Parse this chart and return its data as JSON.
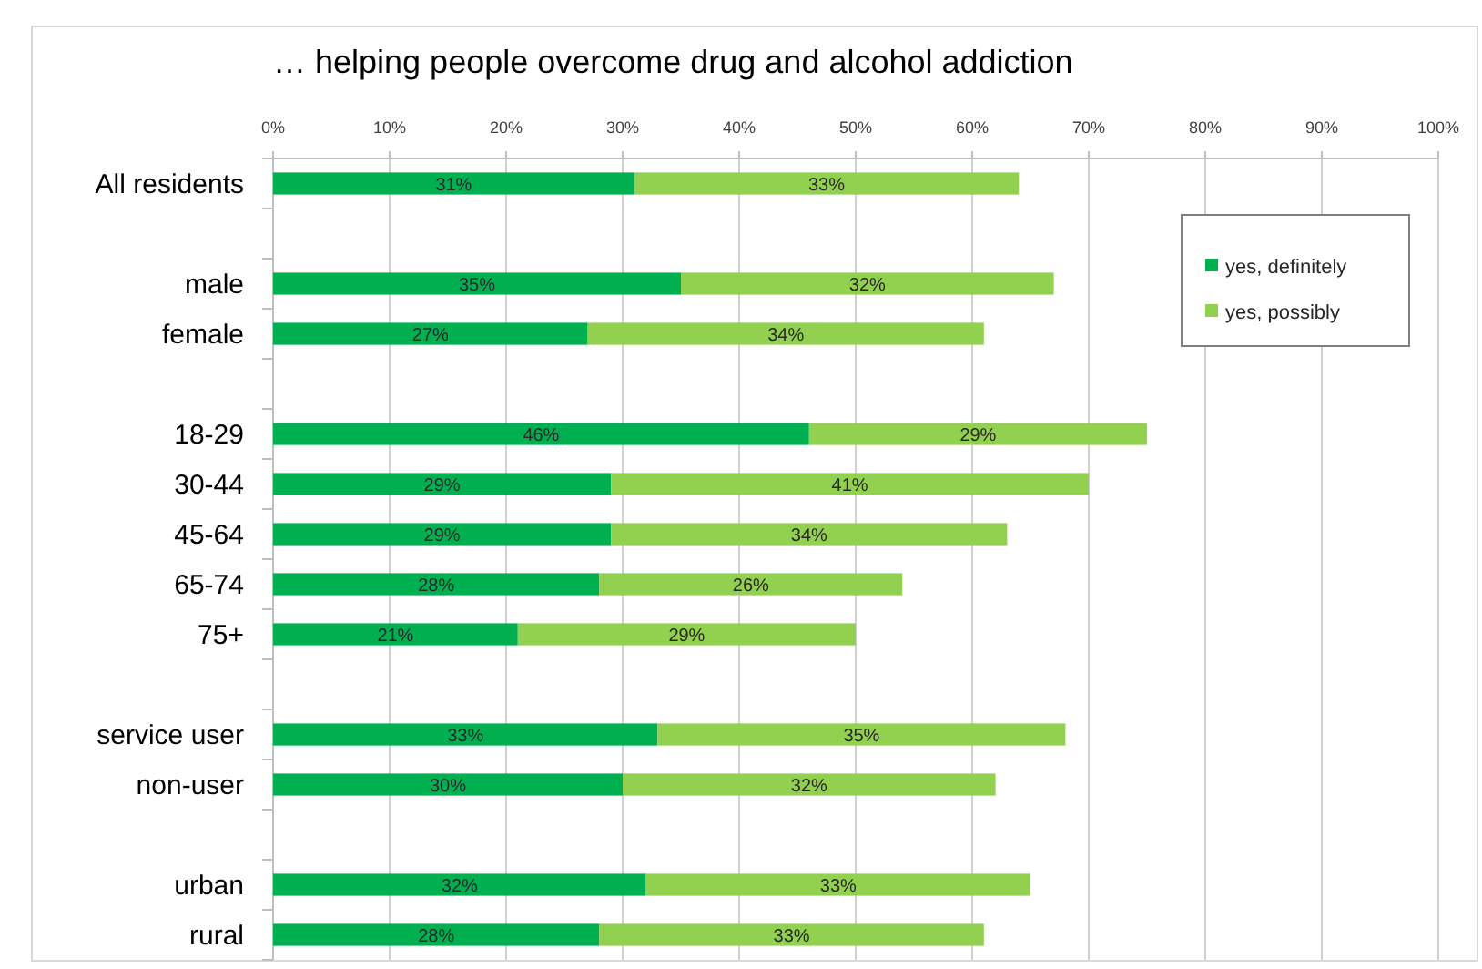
{
  "chart_data": {
    "type": "bar",
    "orientation": "horizontal",
    "stacked": true,
    "title": "… helping people overcome drug and alcohol addiction",
    "categories": [
      "All residents",
      null,
      "male",
      "female",
      null,
      "18-29",
      "30-44",
      "45-64",
      "65-74",
      "75+",
      null,
      "service user",
      "non-user",
      null,
      "urban",
      "rural"
    ],
    "series": [
      {
        "name": "yes, definitely",
        "color": "#00b050",
        "values": [
          31,
          null,
          35,
          27,
          null,
          46,
          29,
          29,
          28,
          21,
          null,
          33,
          30,
          null,
          32,
          28
        ],
        "value_labels": [
          "31%",
          null,
          "35%",
          "27%",
          null,
          "46%",
          "29%",
          "29%",
          "28%",
          "21%",
          null,
          "33%",
          "30%",
          null,
          "32%",
          "28%"
        ]
      },
      {
        "name": "yes, possibly",
        "color": "#92d050",
        "values": [
          33,
          null,
          32,
          34,
          null,
          29,
          41,
          34,
          26,
          29,
          null,
          35,
          32,
          null,
          33,
          33
        ],
        "value_labels": [
          "33%",
          null,
          "32%",
          "34%",
          null,
          "29%",
          "41%",
          "34%",
          "26%",
          "29%",
          null,
          "35%",
          "32%",
          null,
          "33%",
          "33%"
        ]
      }
    ],
    "xlim": [
      0,
      100
    ],
    "xticks": [
      {
        "value": 0,
        "label": "0%"
      },
      {
        "value": 10,
        "label": "10%"
      },
      {
        "value": 20,
        "label": "20%"
      },
      {
        "value": 30,
        "label": "30%"
      },
      {
        "value": 40,
        "label": "40%"
      },
      {
        "value": 50,
        "label": "50%"
      },
      {
        "value": 60,
        "label": "60%"
      },
      {
        "value": 70,
        "label": "70%"
      },
      {
        "value": 80,
        "label": "80%"
      },
      {
        "value": 90,
        "label": "90%"
      },
      {
        "value": 100,
        "label": "100%"
      }
    ],
    "grid": "x",
    "legend": "top right"
  }
}
